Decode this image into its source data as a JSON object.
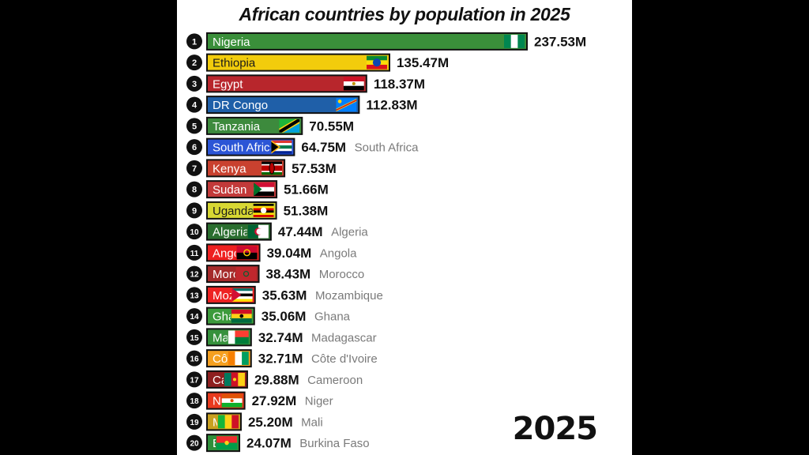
{
  "chart_data": {
    "type": "bar",
    "orientation": "horizontal",
    "title": "African countries by population in 2025",
    "year": "2025",
    "xlim": [
      0,
      237.53
    ],
    "grid": false,
    "legend": "none",
    "ranks": [
      "1",
      "2",
      "3",
      "4",
      "5",
      "6",
      "7",
      "8",
      "9",
      "10",
      "11",
      "12",
      "13",
      "14",
      "15",
      "16",
      "17",
      "18",
      "19",
      "20"
    ],
    "categories": [
      "Nigeria",
      "Ethiopia",
      "Egypt",
      "DR Congo",
      "Tanzania",
      "South Africa",
      "Kenya",
      "Sudan",
      "Uganda",
      "Algeria",
      "Angola",
      "Morocco",
      "Mozambique",
      "Ghana",
      "Madagascar",
      "Côte d'Ivoire",
      "Cameroon",
      "Niger",
      "Mali",
      "Burkina Faso"
    ],
    "values": [
      237.53,
      135.47,
      118.37,
      112.83,
      70.55,
      64.75,
      57.53,
      51.66,
      51.38,
      47.44,
      39.04,
      38.43,
      35.63,
      35.06,
      32.74,
      32.71,
      29.88,
      27.92,
      25.2,
      24.07
    ],
    "value_labels": [
      "237.53M",
      "135.47M",
      "118.37M",
      "112.83M",
      "70.55M",
      "64.75M",
      "57.53M",
      "51.66M",
      "51.38M",
      "47.44M",
      "39.04M",
      "38.43M",
      "35.63M",
      "35.06M",
      "32.74M",
      "32.71M",
      "29.88M",
      "27.92M",
      "25.20M",
      "24.07M"
    ],
    "bar_colors": [
      "#3a8f3a",
      "#f2cc0c",
      "#b8262c",
      "#1f5fa8",
      "#3d8a3d",
      "#2b55d6",
      "#c9412f",
      "#c23a3a",
      "#d7d733",
      "#2a6e2f",
      "#ee2020",
      "#a52a2a",
      "#ee2222",
      "#3c9a3c",
      "#36913c",
      "#f5a020",
      "#8e1f1f",
      "#e83a1e",
      "#c9a020",
      "#2f8f3a"
    ],
    "flags": [
      "flag-nigeria",
      "flag-ethiopia",
      "flag-egypt",
      "flag-dr-congo",
      "flag-tanzania",
      "flag-south-africa",
      "flag-kenya",
      "flag-sudan",
      "flag-uganda",
      "flag-algeria",
      "flag-angola",
      "flag-morocco",
      "flag-mozambique",
      "flag-ghana",
      "flag-madagascar",
      "flag-cote-divoire",
      "flag-cameroon",
      "flag-niger",
      "flag-mali",
      "flag-burkina-faso"
    ]
  }
}
